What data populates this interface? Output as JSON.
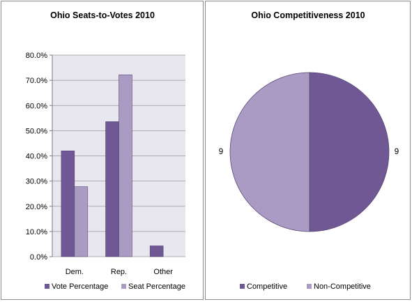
{
  "chart_data": [
    {
      "type": "bar",
      "title": "Ohio Seats-to-Votes 2010",
      "categories": [
        "Dem.",
        "Rep.",
        "Other"
      ],
      "series": [
        {
          "name": "Vote Percentage",
          "values": [
            42.0,
            53.6,
            4.3
          ],
          "color": "#6f5893"
        },
        {
          "name": "Seat Percentage",
          "values": [
            27.8,
            72.2,
            0.0
          ],
          "color": "#a99bc4"
        }
      ],
      "ylim": [
        0,
        80
      ],
      "yticks": [
        "0.0%",
        "10.0%",
        "20.0%",
        "30.0%",
        "40.0%",
        "50.0%",
        "60.0%",
        "70.0%",
        "80.0%"
      ],
      "plot_bg": "#e8e6ee",
      "grid": true,
      "legend_position": "bottom"
    },
    {
      "type": "pie",
      "title": "Ohio Competitiveness 2010",
      "labels": [
        "Competitive",
        "Non-Competitive"
      ],
      "values": [
        9,
        9
      ],
      "data_labels": [
        "9",
        "9"
      ],
      "colors": [
        "#6f5893",
        "#a99bc4"
      ],
      "legend_position": "bottom"
    }
  ]
}
